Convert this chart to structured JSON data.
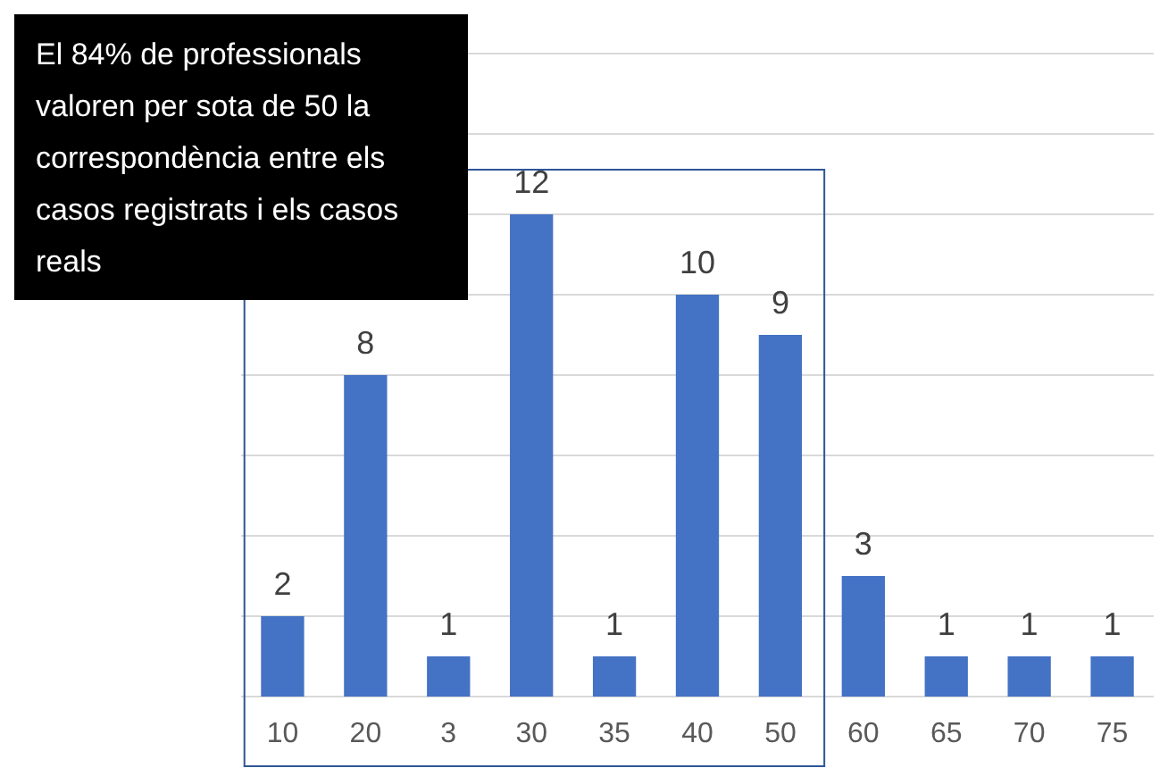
{
  "chart_data": {
    "type": "bar",
    "categories": [
      "10",
      "20",
      "3",
      "30",
      "35",
      "40",
      "50",
      "60",
      "65",
      "70",
      "75"
    ],
    "values": [
      2,
      8,
      1,
      12,
      1,
      10,
      9,
      3,
      1,
      1,
      1
    ],
    "color": "#4472c4",
    "data_labels": true,
    "grid": "y",
    "tick_labels": "x",
    "ylim": [
      0,
      16
    ],
    "yticks": [
      {
        "value": 0,
        "label": null
      },
      {
        "value": 2,
        "label": null
      },
      {
        "value": 4,
        "label": null
      },
      {
        "value": 6,
        "label": null
      },
      {
        "value": 8,
        "label": null
      },
      {
        "value": 10,
        "label": null
      },
      {
        "value": 12,
        "label": null
      },
      {
        "value": 14,
        "label": null
      },
      {
        "value": 16,
        "label": null
      }
    ],
    "annotations": [
      "El 84% de professionals valoren per sota de 50 la correspondència entre els casos registrats i els casos reals"
    ]
  }
}
